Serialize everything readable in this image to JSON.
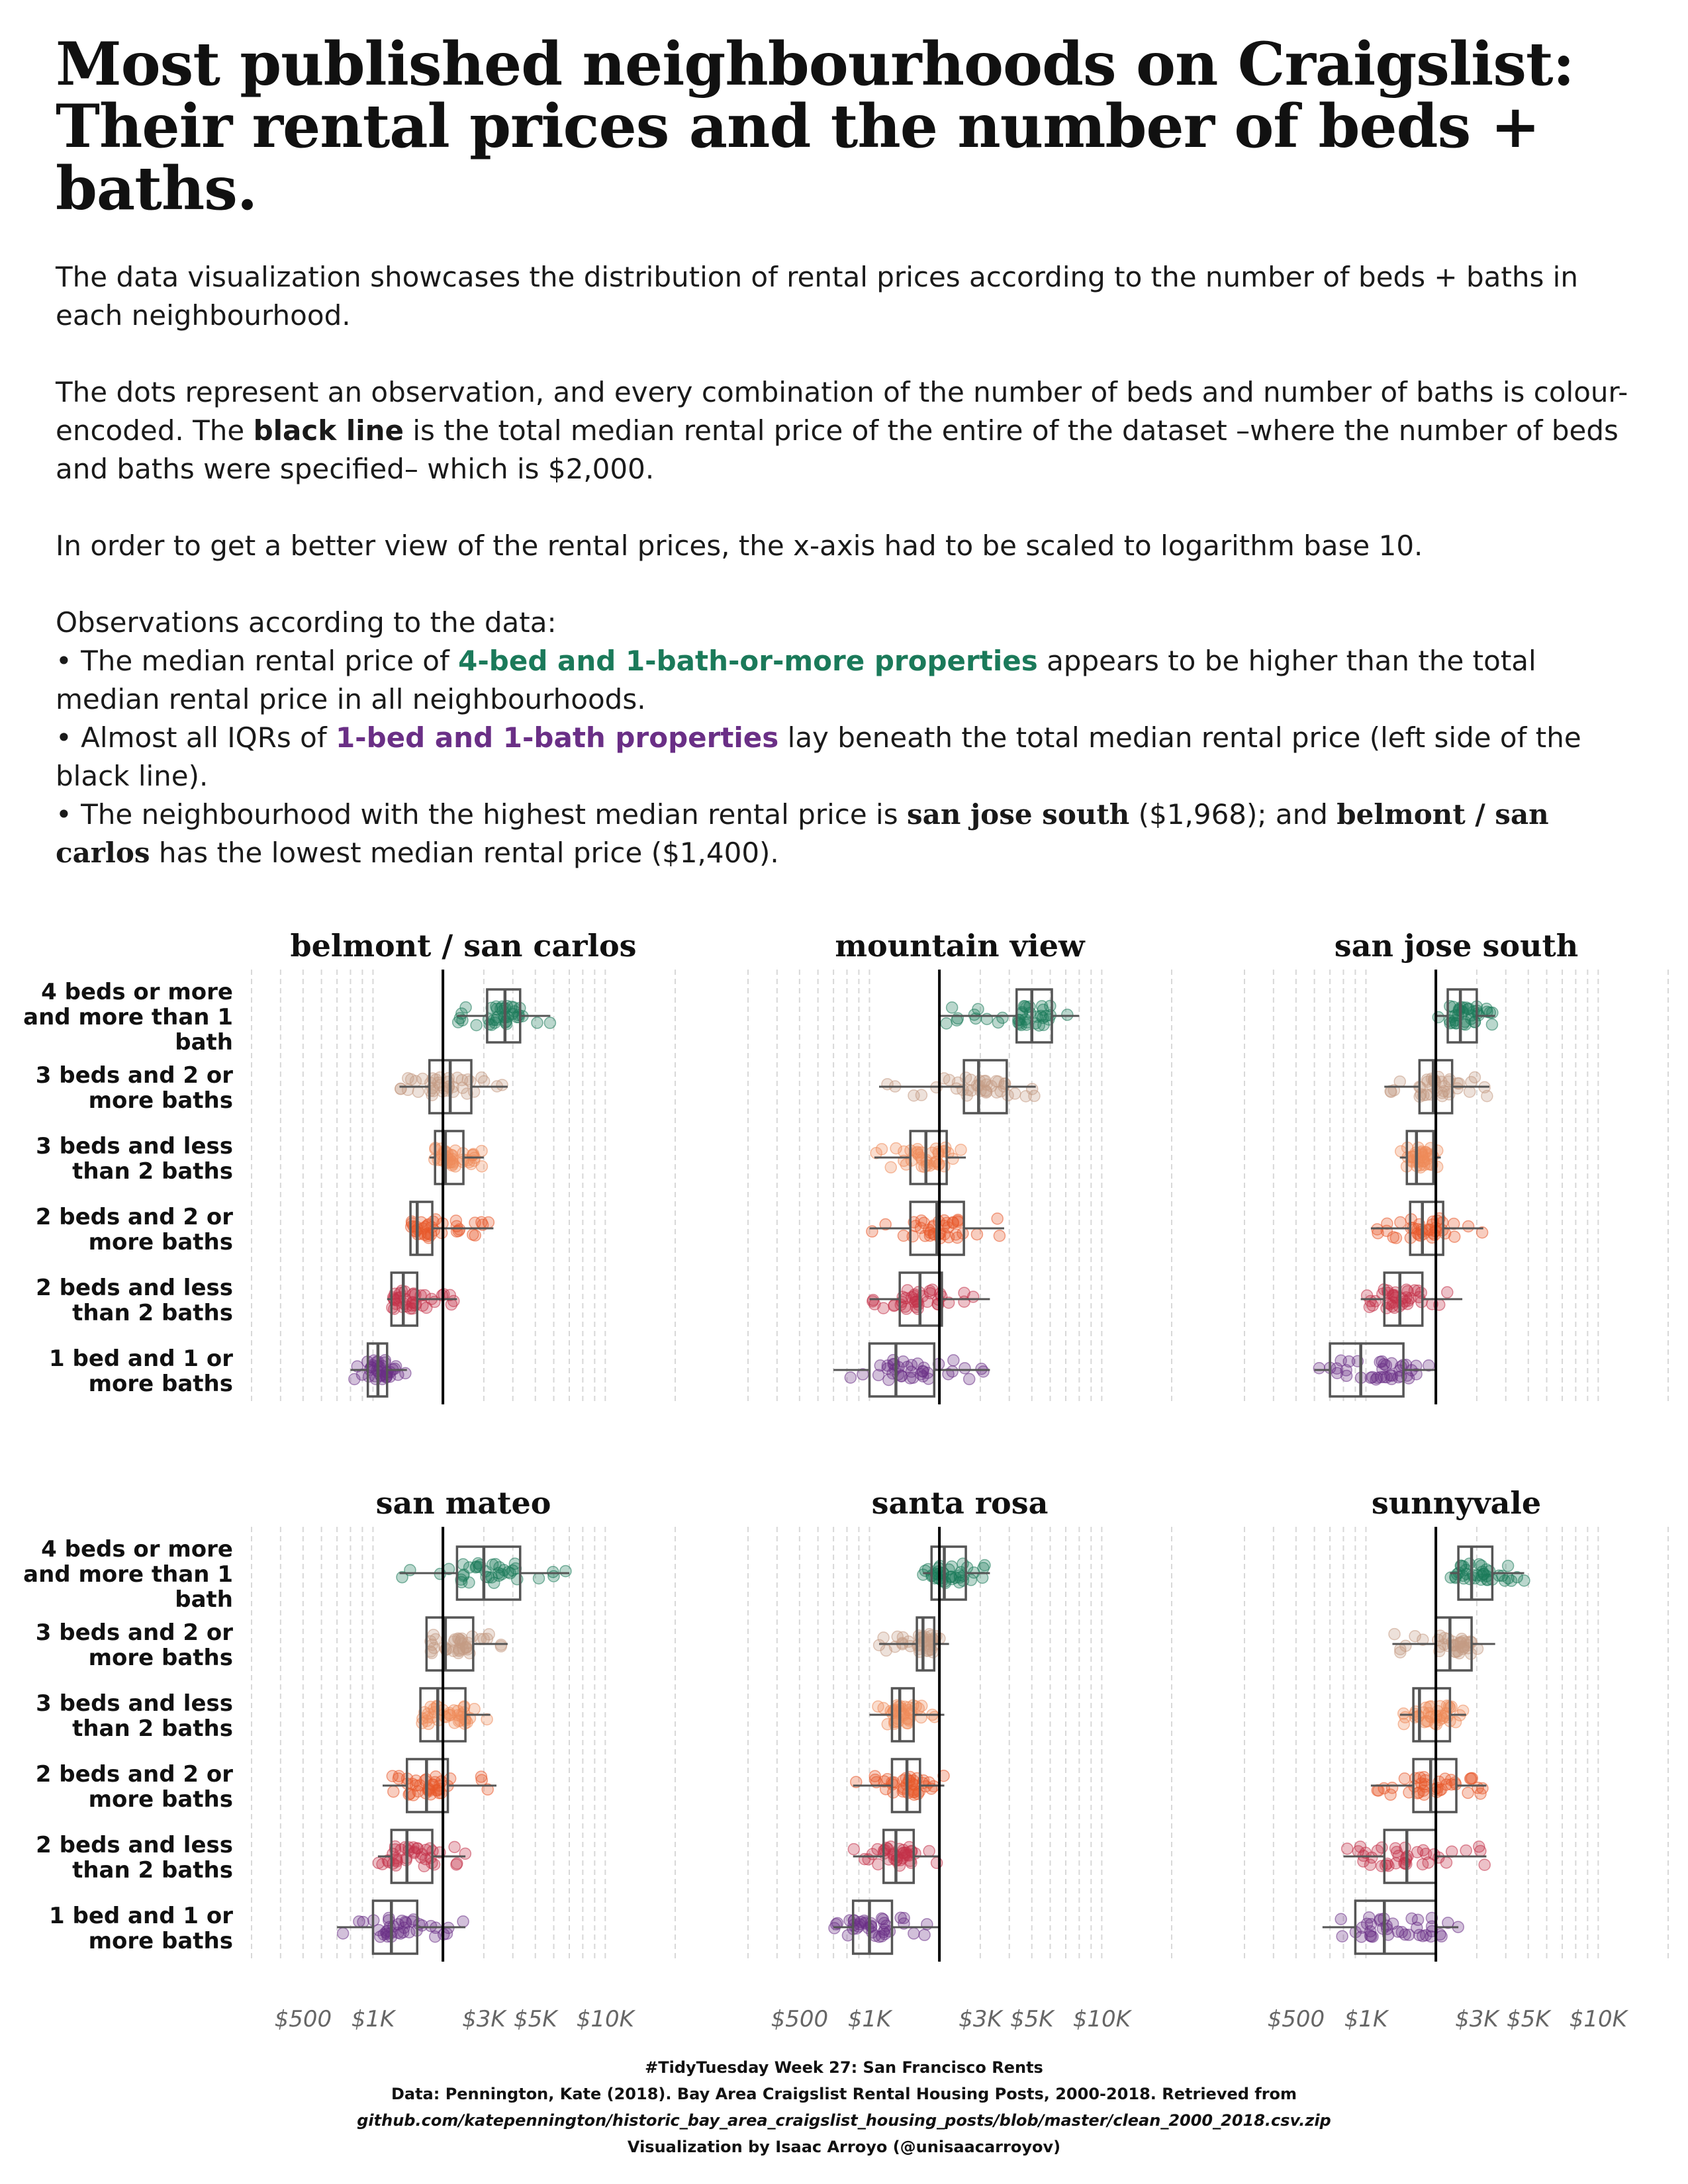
{
  "title_lines": [
    "Most published neighbourhoods on Craigslist:",
    "Their rental prices and the number of beds +",
    "baths."
  ],
  "description": {
    "p1": "The data visualization showcases the distribution of rental prices according to the number of beds + baths in each neighbourhood.",
    "p2_a": "The dots represent an observation, and every combination of the number of beds and number of baths is colour-encoded. The ",
    "p2_b": "black line",
    "p2_c": " is the total median rental price of the entire of the dataset –where the number of beds and baths were specified– which is $2,000.",
    "p3": "In order to get a better view of the rental prices, the x-axis had to be scaled to logarithm base 10.",
    "p4_head": "Observations according to the data:",
    "b1_a": "• The median rental price of ",
    "b1_b": "4-bed and 1-bath-or-more properties",
    "b1_c": " appears to be higher than the total median rental price in all neighbourhoods.",
    "b2_a": "• Almost all IQRs of ",
    "b2_b": "1-bed and 1-bath properties",
    "b2_c": " lay beneath the total median rental price (left side of the black line).",
    "b3_a": "• The neighbourhood with the highest median rental price is ",
    "b3_b": "san jose south",
    "b3_c": " ($1,968); and ",
    "b3_d": "belmont / san carlos",
    "b3_e": " has the lowest median rental price ($1,400)."
  },
  "caption": {
    "line1": "#TidyTuesday Week 27: San Francisco Rents",
    "line2": "Data: Pennington, Kate (2018). Bay Area Craigslist Rental Housing Posts, 2000-2018. Retrieved from",
    "line3": "github.com/katepennington/historic_bay_area_craigslist_housing_posts/blob/master/clean_2000_2018.csv.zip",
    "line4": "Visualization by Isaac Arroyo (@unisaacarroyov)"
  },
  "chart_data": {
    "type": "boxplot",
    "x_scale": "log10",
    "xlim": [
      300,
      20000
    ],
    "x_ticks": [
      500,
      1000,
      3000,
      5000,
      10000
    ],
    "x_tick_labels": [
      "$500",
      "$1K",
      "$3K",
      "$5K",
      "$10K"
    ],
    "reference_line": 2000,
    "grid": "vertical dashed",
    "categories": [
      "4 beds or more and more than 1 bath",
      "3 beds and 2 or more baths",
      "3 beds and less than 2 baths",
      "2 beds and 2 or more baths",
      "2 beds and less than 2 baths",
      "1 bed and 1 or more baths"
    ],
    "category_label_lines": [
      [
        "4 beds or more",
        "and more than 1",
        "bath"
      ],
      [
        "3 beds and 2 or",
        "more baths"
      ],
      [
        "3 beds and less",
        "than 2 baths"
      ],
      [
        "2 beds and 2 or",
        "more baths"
      ],
      [
        "2 beds and less",
        "than 2 baths"
      ],
      [
        "1 bed and 1 or",
        "more baths"
      ]
    ],
    "colors": [
      "#1b7a5a",
      "#c49a84",
      "#ef8b5a",
      "#e8582a",
      "#c23248",
      "#6a2f86"
    ],
    "panels": [
      {
        "name": "belmont / san carlos",
        "stats": [
          {
            "min": 2300,
            "q1": 3100,
            "median": 3700,
            "q3": 4300,
            "max": 5800
          },
          {
            "min": 1300,
            "q1": 1750,
            "median": 2150,
            "q3": 2650,
            "max": 3800
          },
          {
            "min": 1750,
            "q1": 1850,
            "median": 2050,
            "q3": 2450,
            "max": 3000
          },
          {
            "min": 1450,
            "q1": 1450,
            "median": 1550,
            "q3": 1800,
            "max": 3300
          },
          {
            "min": 1150,
            "q1": 1200,
            "median": 1350,
            "q3": 1550,
            "max": 2300
          },
          {
            "min": 800,
            "q1": 950,
            "median": 1050,
            "q3": 1150,
            "max": 1400
          }
        ]
      },
      {
        "name": "mountain view",
        "stats": [
          {
            "min": 2000,
            "q1": 4300,
            "median": 5000,
            "q3": 6100,
            "max": 8000
          },
          {
            "min": 1100,
            "q1": 2550,
            "median": 2950,
            "q3": 3900,
            "max": 5200
          },
          {
            "min": 1050,
            "q1": 1500,
            "median": 1750,
            "q3": 2150,
            "max": 2600
          },
          {
            "min": 1000,
            "q1": 1500,
            "median": 1950,
            "q3": 2550,
            "max": 3800
          },
          {
            "min": 1000,
            "q1": 1350,
            "median": 1650,
            "q3": 2050,
            "max": 3300
          },
          {
            "min": 700,
            "q1": 1000,
            "median": 1300,
            "q3": 1900,
            "max": 3300
          }
        ]
      },
      {
        "name": "san jose south",
        "stats": [
          {
            "min": 2000,
            "q1": 2250,
            "median": 2550,
            "q3": 3000,
            "max": 3600
          },
          {
            "min": 1200,
            "q1": 1700,
            "median": 1950,
            "q3": 2350,
            "max": 3400
          },
          {
            "min": 1400,
            "q1": 1500,
            "median": 1650,
            "q3": 1950,
            "max": 2100
          },
          {
            "min": 1050,
            "q1": 1550,
            "median": 1750,
            "q3": 2150,
            "max": 3200
          },
          {
            "min": 950,
            "q1": 1200,
            "median": 1400,
            "q3": 1750,
            "max": 2600
          },
          {
            "min": 600,
            "q1": 700,
            "median": 950,
            "q3": 1450,
            "max": 2000
          }
        ]
      },
      {
        "name": "san mateo",
        "stats": [
          {
            "min": 1300,
            "q1": 2300,
            "median": 3000,
            "q3": 4300,
            "max": 7000
          },
          {
            "min": 1700,
            "q1": 1700,
            "median": 2050,
            "q3": 2700,
            "max": 3800
          },
          {
            "min": 1600,
            "q1": 1600,
            "median": 1900,
            "q3": 2500,
            "max": 3200
          },
          {
            "min": 1100,
            "q1": 1400,
            "median": 1700,
            "q3": 2100,
            "max": 3400
          },
          {
            "min": 1050,
            "q1": 1200,
            "median": 1400,
            "q3": 1800,
            "max": 2500
          },
          {
            "min": 700,
            "q1": 1000,
            "median": 1200,
            "q3": 1550,
            "max": 2500
          }
        ]
      },
      {
        "name": "santa rosa",
        "stats": [
          {
            "min": 1700,
            "q1": 1850,
            "median": 2100,
            "q3": 2600,
            "max": 3300
          },
          {
            "min": 1100,
            "q1": 1600,
            "median": 1700,
            "q3": 1900,
            "max": 2200
          },
          {
            "min": 1000,
            "q1": 1250,
            "median": 1350,
            "q3": 1550,
            "max": 2100
          },
          {
            "min": 850,
            "q1": 1250,
            "median": 1450,
            "q3": 1650,
            "max": 2100
          },
          {
            "min": 850,
            "q1": 1150,
            "median": 1300,
            "q3": 1550,
            "max": 2000
          },
          {
            "min": 700,
            "q1": 850,
            "median": 1000,
            "q3": 1250,
            "max": 2000
          }
        ]
      },
      {
        "name": "sunnyvale",
        "stats": [
          {
            "min": 2300,
            "q1": 2500,
            "median": 2850,
            "q3": 3500,
            "max": 4800
          },
          {
            "min": 1300,
            "q1": 2000,
            "median": 2300,
            "q3": 2850,
            "max": 3600
          },
          {
            "min": 1400,
            "q1": 1600,
            "median": 1700,
            "q3": 2300,
            "max": 2700
          },
          {
            "min": 1050,
            "q1": 1600,
            "median": 1900,
            "q3": 2450,
            "max": 3300
          },
          {
            "min": 800,
            "q1": 1200,
            "median": 1500,
            "q3": 2000,
            "max": 3300
          },
          {
            "min": 650,
            "q1": 900,
            "median": 1200,
            "q3": 2000,
            "max": 2500
          }
        ]
      }
    ]
  }
}
